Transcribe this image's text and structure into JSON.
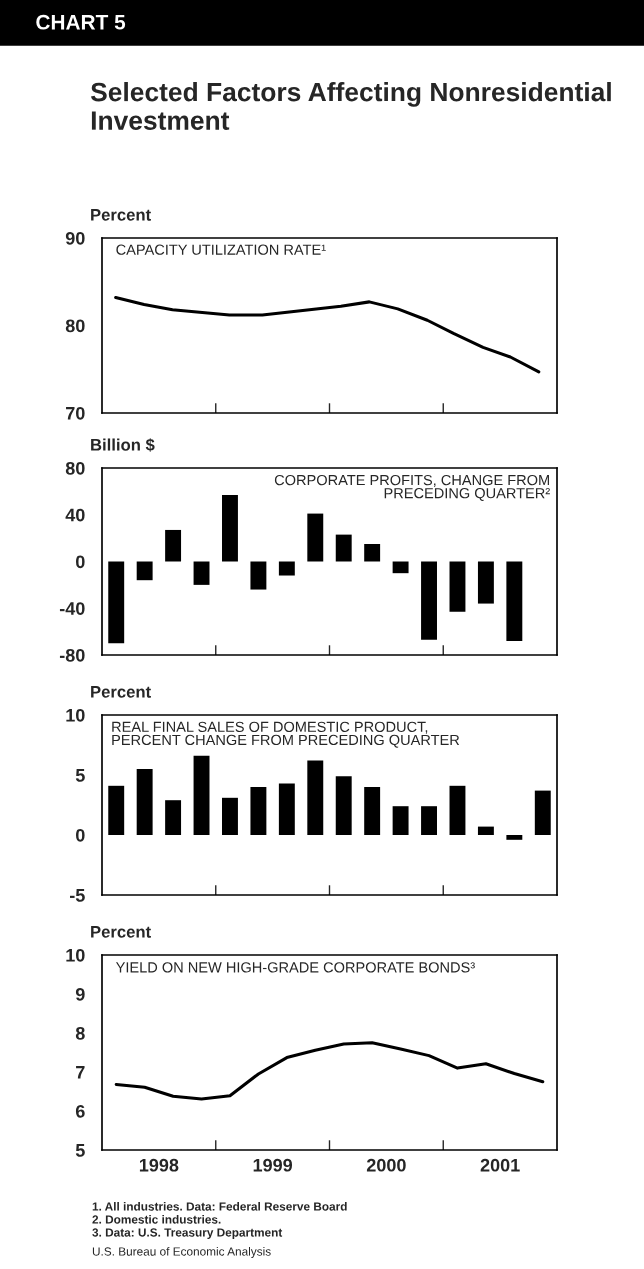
{
  "chart_data": [
    {
      "type": "line",
      "title": "CHART 5",
      "subtitle": "Selected Factors Affecting Nonresidential Investment",
      "ylabel": "Percent",
      "annotations": [
        "CAPACITY UTILIZATION RATE¹"
      ],
      "series": [
        {
          "color": "#000000",
          "x": [
            1998.12,
            1998.37,
            1998.62,
            1999.12,
            1999.41,
            2000.1,
            2000.35,
            2000.6,
            2000.86,
            2001.09,
            2001.35,
            2001.59,
            2001.84
          ],
          "values": [
            83.2,
            82.4,
            81.8,
            81.2,
            81.2,
            82.2,
            82.7,
            81.9,
            80.6,
            79.1,
            77.5,
            76.4,
            74.7
          ]
        }
      ],
      "xlim": [
        1998,
        2002
      ],
      "xticks": [
        {
          "value": 1999,
          "label": null
        },
        {
          "value": 2000,
          "label": null
        },
        {
          "value": 2001,
          "label": null
        }
      ],
      "ylim": [
        70,
        90
      ],
      "yticks": [
        70,
        80,
        90
      ],
      "tick_labels": "y",
      "grid": false,
      "legend": false
    },
    {
      "type": "bar",
      "ylabel": "Billion $",
      "annotations": [
        "CORPORATE PROFITS, CHANGE FROM\nPRECEDING QUARTER²"
      ],
      "x": [
        1998.125,
        1998.375,
        1998.625,
        1998.875,
        1999.125,
        1999.375,
        1999.625,
        1999.875,
        2000.125,
        2000.375,
        2000.625,
        2000.875,
        2001.125,
        2001.375,
        2001.625
      ],
      "series": [
        {
          "color": "#000000",
          "values": [
            -70,
            -16,
            27,
            -20,
            57,
            -24,
            -12,
            41,
            23,
            15,
            -10,
            -67,
            -43,
            -36,
            -68
          ]
        }
      ],
      "xlim": [
        1998,
        2002
      ],
      "xticks": [
        {
          "value": 1999,
          "label": null
        },
        {
          "value": 2000,
          "label": null
        },
        {
          "value": 2001,
          "label": null
        }
      ],
      "ylim": [
        -80,
        80
      ],
      "yticks": [
        -80,
        -40,
        0,
        40,
        80
      ],
      "tick_labels": "y",
      "grid": false,
      "legend": false
    },
    {
      "type": "bar",
      "ylabel": "Percent",
      "annotations": [
        "REAL FINAL SALES OF DOMESTIC PRODUCT,\nPERCENT CHANGE FROM PRECEDING QUARTER"
      ],
      "x": [
        1998.125,
        1998.375,
        1998.625,
        1998.875,
        1999.125,
        1999.375,
        1999.625,
        1999.875,
        2000.125,
        2000.375,
        2000.625,
        2000.875,
        2001.125,
        2001.375,
        2001.625,
        2001.875
      ],
      "series": [
        {
          "color": "#000000",
          "values": [
            4.1,
            5.5,
            2.9,
            6.6,
            3.1,
            4.0,
            4.3,
            6.2,
            4.9,
            4.0,
            2.4,
            2.4,
            4.1,
            0.7,
            -0.4,
            3.7
          ]
        }
      ],
      "xlim": [
        1998,
        2002
      ],
      "xticks": [
        {
          "value": 1999,
          "label": null
        },
        {
          "value": 2000,
          "label": null
        },
        {
          "value": 2001,
          "label": null
        }
      ],
      "ylim": [
        -5,
        10
      ],
      "yticks": [
        -5,
        0,
        5,
        10
      ],
      "tick_labels": "y",
      "grid": false,
      "legend": false
    },
    {
      "type": "line",
      "ylabel": "Percent",
      "annotations": [
        "YIELD ON NEW HIGH-GRADE CORPORATE BONDS³",
        "1. All industries. Data: Federal Reserve Board",
        "2. Domestic industries.",
        "3. Data: U.S. Treasury Department",
        "U.S. Bureau of Economic Analysis"
      ],
      "series": [
        {
          "color": "#000000",
          "x": [
            1998.125,
            1998.375,
            1998.625,
            1998.875,
            1999.125,
            1999.375,
            1999.625,
            1999.875,
            2000.125,
            2000.375,
            2000.625,
            2000.875,
            2001.125,
            2001.375,
            2001.625,
            2001.875
          ],
          "values": [
            6.68,
            6.61,
            6.38,
            6.31,
            6.39,
            6.95,
            7.37,
            7.56,
            7.72,
            7.75,
            7.59,
            7.42,
            7.1,
            7.21,
            6.96,
            6.75
          ]
        }
      ],
      "xlim": [
        1998,
        2002
      ],
      "xticks": [
        {
          "value": 1998.5,
          "label": "1998"
        },
        {
          "value": 1999,
          "label": null
        },
        {
          "value": 1999.5,
          "label": "1999"
        },
        {
          "value": 2000,
          "label": null
        },
        {
          "value": 2000.5,
          "label": "2000"
        },
        {
          "value": 2001,
          "label": null
        },
        {
          "value": 2001.5,
          "label": "2001"
        }
      ],
      "ylim": [
        5,
        10
      ],
      "yticks": [
        5,
        6,
        7,
        8,
        9,
        10
      ],
      "grid": false,
      "legend": false
    }
  ]
}
